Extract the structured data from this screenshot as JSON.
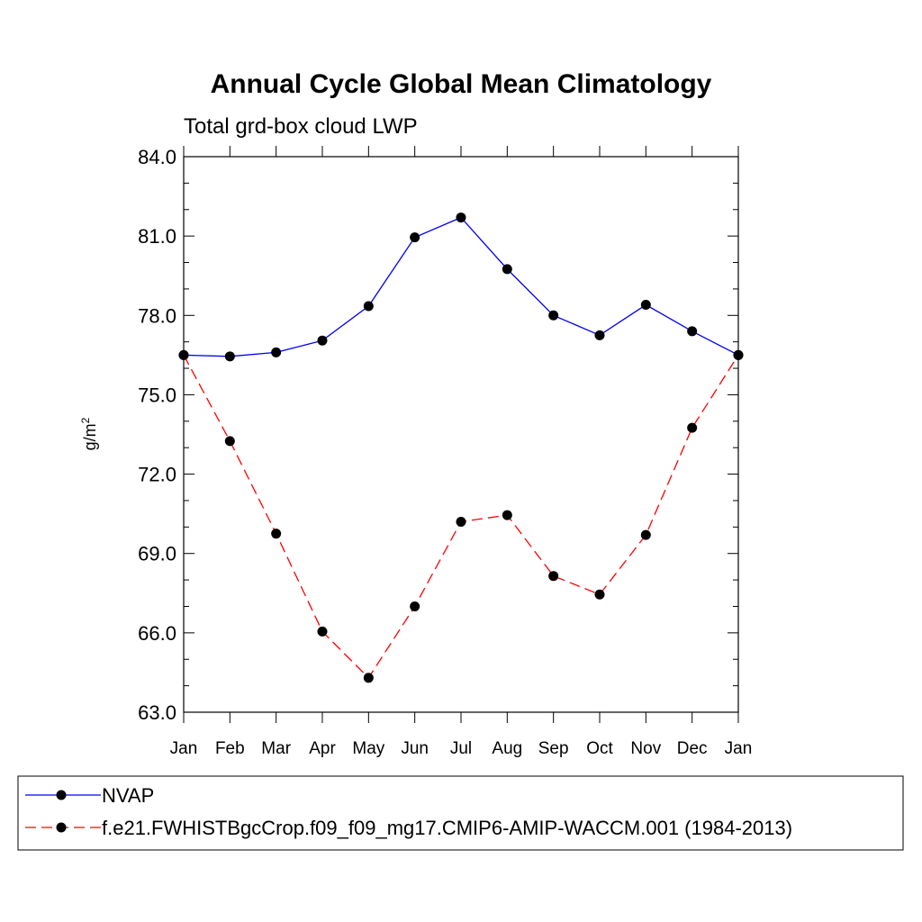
{
  "chart_data": {
    "type": "line",
    "title": "Annual Cycle Global Mean Climatology",
    "subtitle": "Total grd-box cloud LWP",
    "ylabel": "g/m",
    "ylabel_sup": "2",
    "xlabel": "",
    "ylim": [
      63.0,
      84.0
    ],
    "yticks": [
      "63.0",
      "66.0",
      "69.0",
      "72.0",
      "75.0",
      "78.0",
      "81.0",
      "84.0"
    ],
    "categories": [
      "Jan",
      "Feb",
      "Mar",
      "Apr",
      "May",
      "Jun",
      "Jul",
      "Aug",
      "Sep",
      "Oct",
      "Nov",
      "Dec",
      "Jan"
    ],
    "grid": false,
    "legend_position": "bottom",
    "series": [
      {
        "name": "NVAP",
        "color": "#0000ff",
        "style": "solid",
        "values": [
          76.5,
          76.45,
          76.6,
          77.05,
          78.35,
          80.95,
          81.7,
          79.75,
          78.0,
          77.25,
          78.4,
          77.4,
          76.5
        ]
      },
      {
        "name": "f.e21.FWHISTBgcCrop.f09_f09_mg17.CMIP6-AMIP-WACCM.001 (1984-2013)",
        "color": "#ff0000",
        "style": "dashed",
        "values": [
          76.5,
          73.25,
          69.75,
          66.05,
          64.3,
          67.0,
          70.2,
          70.45,
          68.15,
          67.45,
          69.7,
          73.75,
          76.5
        ]
      }
    ]
  }
}
